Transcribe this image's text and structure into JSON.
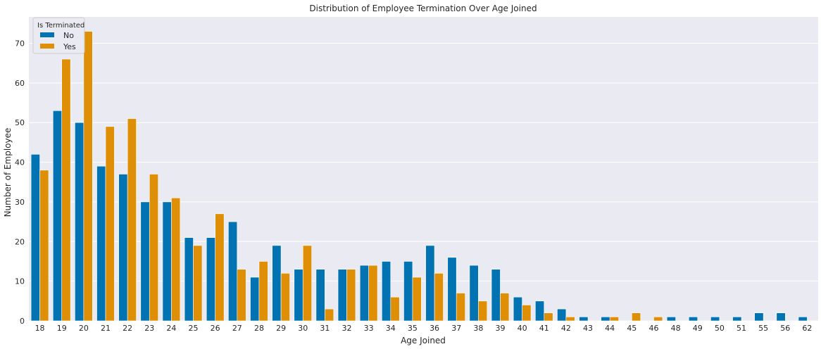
{
  "chart_data": {
    "type": "bar",
    "title": "Distribution of Employee Termination Over Age Joined",
    "xlabel": "Age Joined",
    "ylabel": "Number of Employee",
    "ylim": [
      0,
      76.65
    ],
    "yticks": [
      0,
      10,
      20,
      30,
      40,
      50,
      60,
      70
    ],
    "grid": true,
    "legend": {
      "title": "Is Terminated",
      "placement": "top-left"
    },
    "categories": [
      "18",
      "19",
      "20",
      "21",
      "22",
      "23",
      "24",
      "25",
      "26",
      "27",
      "28",
      "29",
      "30",
      "31",
      "32",
      "33",
      "34",
      "35",
      "36",
      "37",
      "38",
      "39",
      "40",
      "41",
      "42",
      "43",
      "44",
      "45",
      "46",
      "48",
      "49",
      "50",
      "51",
      "55",
      "56",
      "62"
    ],
    "series": [
      {
        "name": "No",
        "color": "#0173b2",
        "values": [
          42,
          53,
          50,
          39,
          37,
          30,
          30,
          21,
          21,
          25,
          11,
          19,
          13,
          13,
          13,
          14,
          15,
          15,
          19,
          16,
          14,
          13,
          6,
          5,
          3,
          1,
          1,
          0,
          0,
          1,
          1,
          1,
          1,
          2,
          2,
          1
        ]
      },
      {
        "name": "Yes",
        "color": "#de8f05",
        "values": [
          38,
          66,
          73,
          49,
          51,
          37,
          31,
          19,
          27,
          13,
          15,
          12,
          19,
          3,
          13,
          14,
          6,
          11,
          12,
          7,
          5,
          7,
          4,
          2,
          1,
          0,
          1,
          2,
          1,
          0,
          0,
          0,
          0,
          0,
          0,
          0
        ]
      }
    ]
  },
  "style": {
    "plot_bg": "#eaeaf2",
    "grid_color": "#ffffff"
  }
}
